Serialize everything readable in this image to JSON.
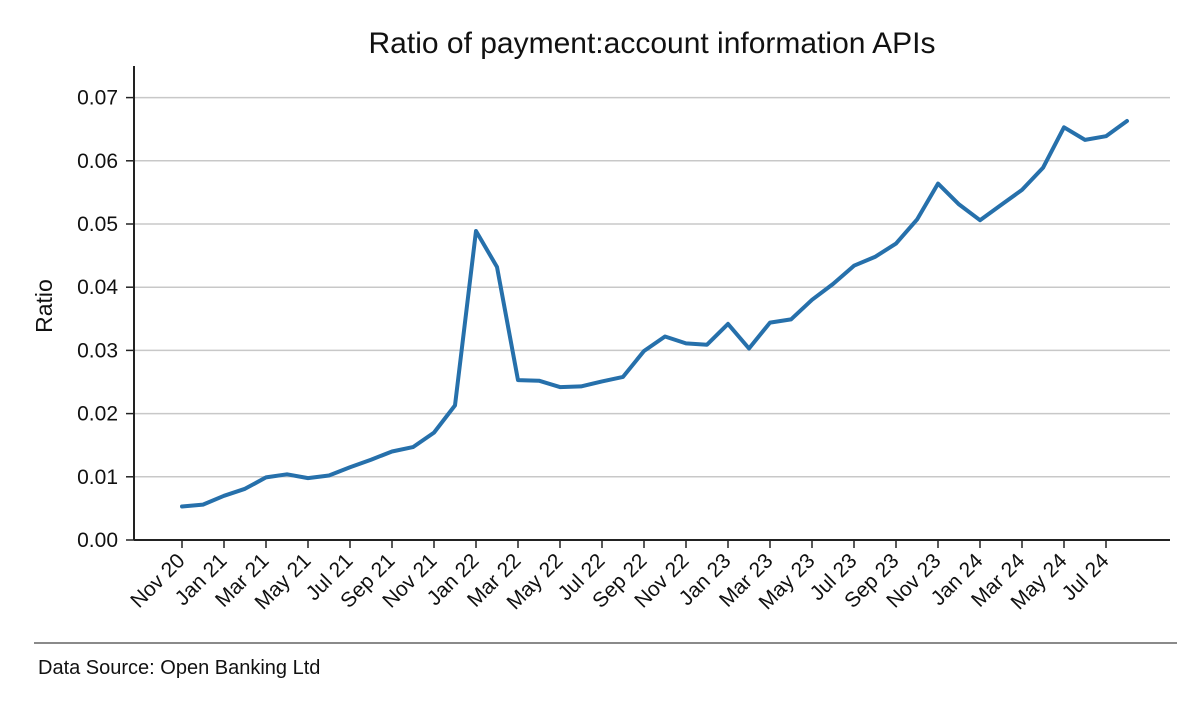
{
  "chart_data": {
    "type": "line",
    "title": "Ratio of payment:account information APIs",
    "xlabel": "",
    "ylabel": "Ratio",
    "ylim": [
      0,
      0.075
    ],
    "yticks": [
      0.0,
      0.01,
      0.02,
      0.03,
      0.04,
      0.05,
      0.06,
      0.07
    ],
    "ytick_labels": [
      "0.00",
      "0.01",
      "0.02",
      "0.03",
      "0.04",
      "0.05",
      "0.06",
      "0.07"
    ],
    "xtick_labels": [
      "Nov 20",
      "Jan 21",
      "Mar 21",
      "May 21",
      "Jul 21",
      "Sep 21",
      "Nov 21",
      "Jan 22",
      "Mar 22",
      "May 22",
      "Jul 22",
      "Sep 22",
      "Nov 22",
      "Jan 23",
      "Mar 23",
      "May 23",
      "Jul 23",
      "Sep 23",
      "Nov 23",
      "Jan 24",
      "Mar 24",
      "May 24",
      "Jul 24"
    ],
    "grid": "horizontal",
    "color": "#2670ab",
    "series": [
      {
        "x": [
          "Nov 20",
          "Dec 20",
          "Jan 21",
          "Feb 21",
          "Mar 21",
          "Apr 21",
          "May 21",
          "Jun 21",
          "Jul 21",
          "Aug 21",
          "Sep 21",
          "Oct 21",
          "Nov 21",
          "Dec 21",
          "Jan 22",
          "Feb 22",
          "Mar 22",
          "Apr 22",
          "May 22",
          "Jun 22",
          "Jul 22",
          "Aug 22",
          "Sep 22",
          "Oct 22",
          "Nov 22",
          "Dec 22",
          "Jan 23",
          "Feb 23",
          "Mar 23",
          "Apr 23",
          "May 23",
          "Jun 23",
          "Jul 23",
          "Aug 23",
          "Sep 23",
          "Oct 23",
          "Nov 23",
          "Dec 23",
          "Jan 24",
          "Feb 24",
          "Mar 24",
          "Apr 24",
          "May 24",
          "Jun 24",
          "Jul 24",
          "Aug 24"
        ],
        "values": [
          0.0053,
          0.0056,
          0.007,
          0.0081,
          0.0099,
          0.0104,
          0.0098,
          0.0102,
          0.0115,
          0.0127,
          0.014,
          0.0147,
          0.017,
          0.0213,
          0.0489,
          0.0432,
          0.0253,
          0.0252,
          0.0242,
          0.0243,
          0.0251,
          0.0258,
          0.0299,
          0.0322,
          0.0311,
          0.0309,
          0.0342,
          0.0303,
          0.0344,
          0.0349,
          0.038,
          0.0405,
          0.0434,
          0.0448,
          0.0469,
          0.0507,
          0.0564,
          0.0531,
          0.0506,
          0.053,
          0.0554,
          0.0589,
          0.0653,
          0.0633,
          0.0639,
          0.0663
        ]
      }
    ]
  },
  "footer": {
    "source": "Data Source: Open Banking Ltd"
  }
}
